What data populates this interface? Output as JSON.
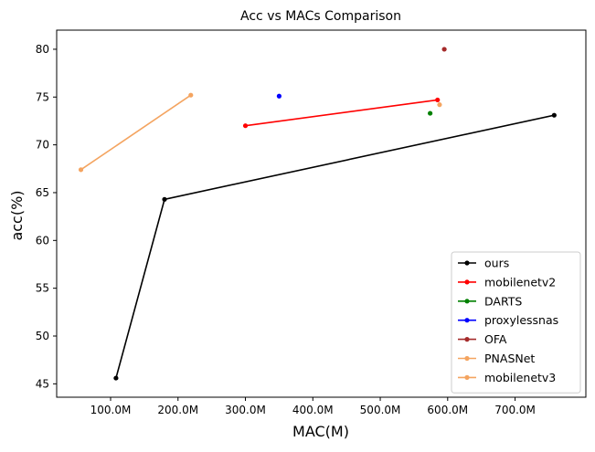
{
  "chart_data": {
    "type": "line",
    "title": "Acc vs MACs Comparison",
    "xlabel": "MAC(M)",
    "ylabel": "acc(%)",
    "xlim": [
      20,
      805
    ],
    "ylim": [
      43.6,
      82.0
    ],
    "x_ticks": [
      100,
      200,
      300,
      400,
      500,
      600,
      700
    ],
    "x_tick_labels": [
      "100.0M",
      "200.0M",
      "300.0M",
      "400.0M",
      "500.0M",
      "600.0M",
      "700.0M"
    ],
    "y_ticks": [
      45,
      50,
      55,
      60,
      65,
      70,
      75,
      80
    ],
    "y_tick_labels": [
      "45",
      "50",
      "55",
      "60",
      "65",
      "70",
      "75",
      "80"
    ],
    "grid": false,
    "legend_position": "bottom-right",
    "series": [
      {
        "name": "ours",
        "color": "#000000",
        "x": [
          108,
          180,
          758
        ],
        "y": [
          45.6,
          64.3,
          73.1
        ]
      },
      {
        "name": "mobilenetv2",
        "color": "#ff0000",
        "x": [
          300,
          585
        ],
        "y": [
          72.0,
          74.7
        ]
      },
      {
        "name": "DARTS",
        "color": "#008000",
        "x": [
          574
        ],
        "y": [
          73.3
        ]
      },
      {
        "name": "proxylessnas",
        "color": "#0000ff",
        "x": [
          350
        ],
        "y": [
          75.1
        ]
      },
      {
        "name": "OFA",
        "color": "#a52a2a",
        "x": [
          595
        ],
        "y": [
          80.0
        ]
      },
      {
        "name": "PNASNet",
        "color": "#f4a460",
        "x": [
          588
        ],
        "y": [
          74.2
        ]
      },
      {
        "name": "mobilenetv3",
        "color": "#f4a460",
        "x": [
          56,
          219
        ],
        "y": [
          67.4,
          75.2
        ]
      }
    ]
  }
}
